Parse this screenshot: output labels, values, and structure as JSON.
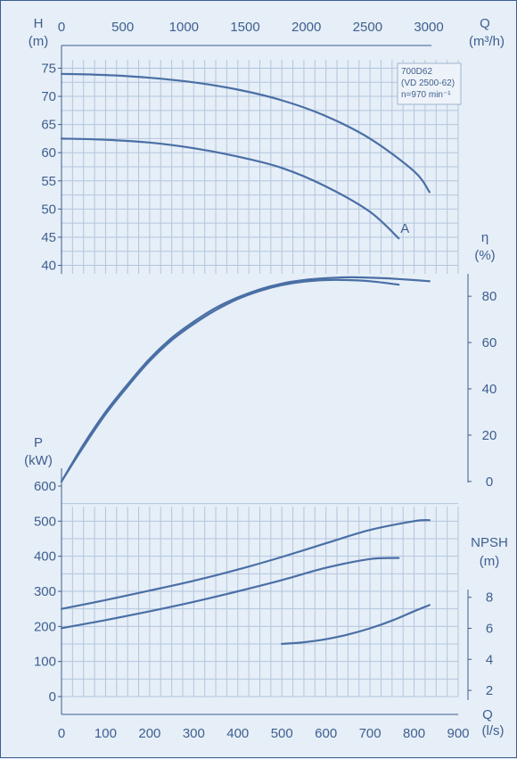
{
  "chart_data": {
    "type": "line",
    "colors": {
      "curve": "#4a6fa5",
      "text": "#3e5f8f",
      "grid": "#b3c6de",
      "background": "#e6eef7"
    },
    "legend": {
      "lines": [
        "700D62",
        "(VD 2500-62)",
        "n=970 min⁻¹"
      ],
      "position": "top-right"
    },
    "x_axis_top": {
      "label": "Q",
      "unit": "(m³/h)",
      "range": [
        0,
        3240
      ],
      "ticks": [
        0,
        500,
        1000,
        1500,
        2000,
        2500,
        3000
      ]
    },
    "x_axis_bottom": {
      "label": "Q",
      "unit": "(l/s)",
      "range": [
        0,
        900
      ],
      "ticks": [
        0,
        100,
        200,
        300,
        400,
        500,
        600,
        700,
        800,
        900
      ]
    },
    "panels": {
      "head": {
        "ylabel": "H",
        "yunit": "(m)",
        "ylim": [
          38.5,
          76.5
        ],
        "ticks": [
          40,
          45,
          50,
          55,
          60,
          65,
          70,
          75
        ],
        "series": [
          {
            "x": [
              0,
              100,
              200,
              300,
              400,
              500,
              600,
              700,
              800,
              835
            ],
            "y": [
              74.0,
              73.8,
              73.3,
              72.5,
              71.2,
              69.3,
              66.5,
              62.5,
              56.7,
              53.0
            ]
          },
          {
            "x": [
              0,
              100,
              200,
              300,
              400,
              500,
              600,
              700,
              765
            ],
            "y": [
              62.5,
              62.3,
              61.8,
              60.8,
              59.3,
              57.3,
              54.0,
              49.5,
              44.8
            ],
            "label": "A"
          }
        ]
      },
      "efficiency": {
        "ylabel": "η",
        "yunit": "(%)",
        "ylim": [
          -2,
          92
        ],
        "ticks": [
          0,
          20,
          40,
          60,
          80
        ],
        "series": [
          {
            "x": [
              0,
              50,
              100,
              150,
              200,
              250,
              300,
              350,
              400,
              450,
              500,
              550,
              600,
              650,
              700,
              750,
              800,
              835
            ],
            "y": [
              0,
              16,
              30,
              42,
              53,
              62,
              69,
              75,
              79.5,
              83,
              85.5,
              87,
              87.8,
              88.2,
              88.0,
              87.6,
              87.0,
              86.5
            ]
          },
          {
            "x": [
              0,
              50,
              100,
              150,
              200,
              250,
              300,
              350,
              400,
              450,
              500,
              550,
              600,
              650,
              700,
              765
            ],
            "y": [
              0,
              15,
              29,
              41,
              52,
              61,
              68,
              74,
              78.8,
              82.3,
              84.8,
              86.3,
              87.0,
              87.0,
              86.5,
              85.0
            ]
          }
        ]
      },
      "power": {
        "ylabel": "P",
        "yunit": "(kW)",
        "ylim": [
          0,
          600
        ],
        "ticks": [
          0,
          100,
          200,
          300,
          400,
          500,
          600
        ],
        "series": [
          {
            "x": [
              0,
              100,
              200,
              300,
              400,
              500,
              600,
              700,
              800,
              835
            ],
            "y": [
              250,
              275,
              302,
              330,
              362,
              398,
              437,
              475,
              500,
              503
            ]
          },
          {
            "x": [
              0,
              100,
              200,
              300,
              400,
              500,
              600,
              700,
              765
            ],
            "y": [
              195,
              218,
              243,
              270,
              300,
              332,
              367,
              392,
              395
            ]
          }
        ]
      },
      "npsh": {
        "ylabel": "NPSH",
        "yunit": "(m)",
        "ylim": [
          1.6,
          8.5
        ],
        "ticks": [
          2,
          4,
          6,
          8
        ],
        "series": [
          {
            "x": [
              500,
              550,
              600,
              650,
              700,
              750,
              800,
              835
            ],
            "y": [
              5.0,
              5.1,
              5.3,
              5.6,
              6.0,
              6.5,
              7.1,
              7.5
            ]
          }
        ]
      }
    }
  }
}
